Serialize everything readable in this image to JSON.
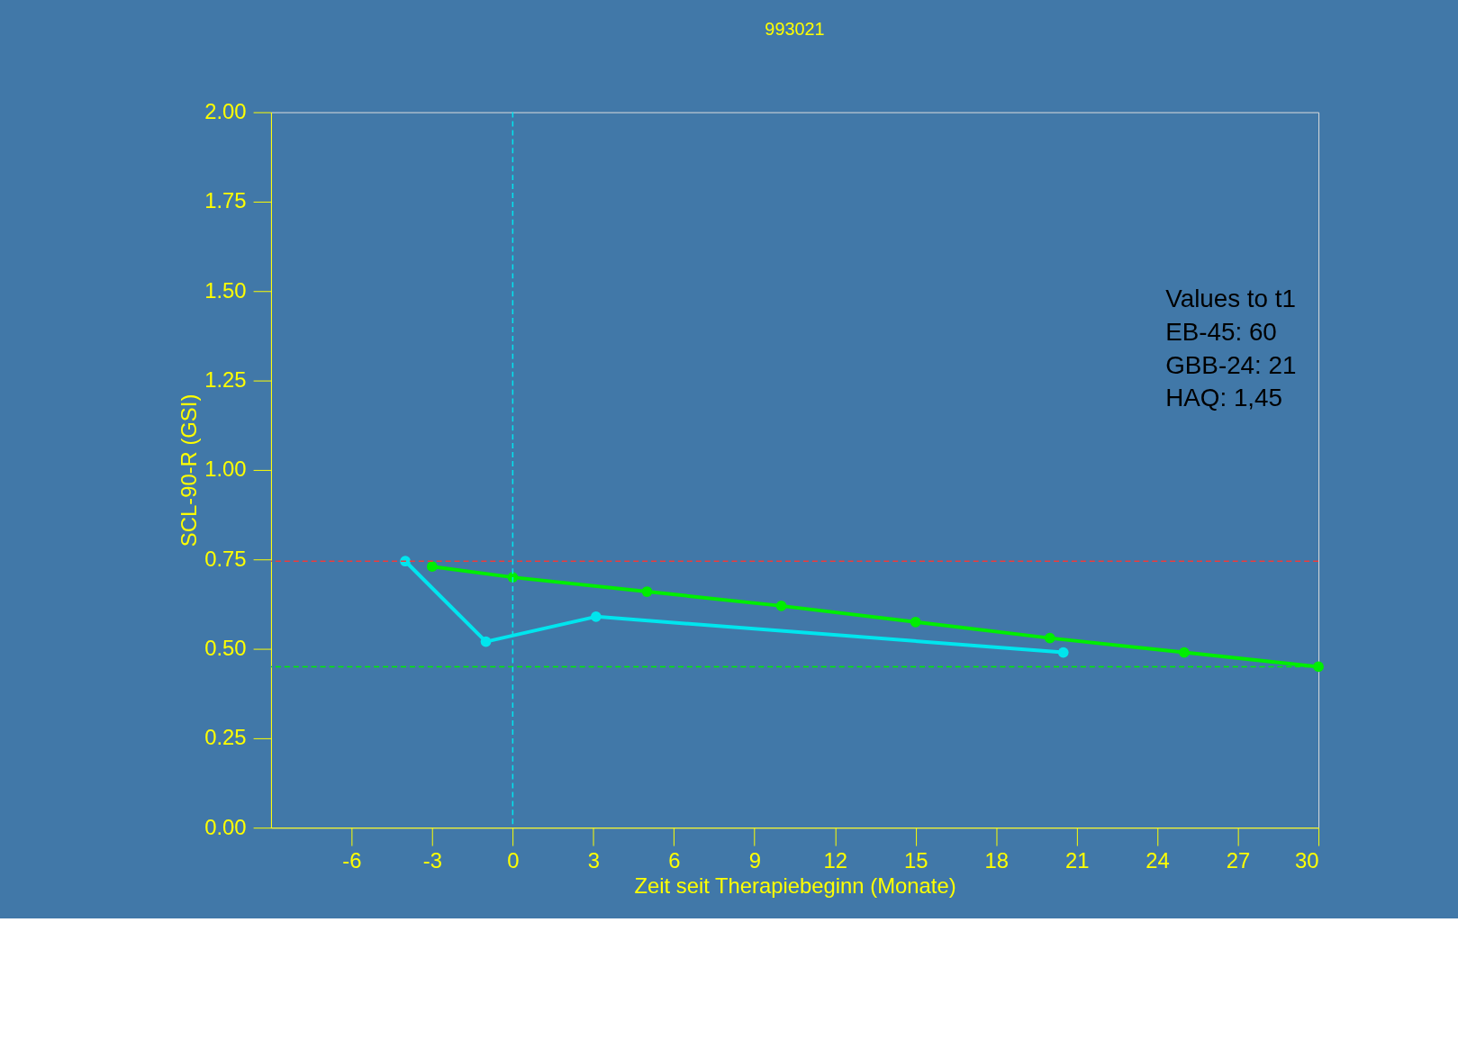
{
  "chart_data": {
    "type": "line",
    "title": "993021",
    "xlabel": "Zeit seit Therapiebeginn (Monate)",
    "ylabel": "SCL-90-R (GSI)",
    "xlim": [
      -9,
      30
    ],
    "xticks": [
      -6,
      -3,
      0,
      3,
      6,
      9,
      12,
      15,
      18,
      21,
      24,
      27,
      30
    ],
    "ylim": [
      0,
      2
    ],
    "yticks": [
      {
        "value": 0,
        "label": "0.00"
      },
      {
        "value": 0.25,
        "label": "0.25"
      },
      {
        "value": 0.5,
        "label": "0.50"
      },
      {
        "value": 0.75,
        "label": "0.75"
      },
      {
        "value": 1,
        "label": "1.00"
      },
      {
        "value": 1.25,
        "label": "1.25"
      },
      {
        "value": 1.5,
        "label": "1.50"
      },
      {
        "value": 1.75,
        "label": "1.75"
      },
      {
        "value": 2,
        "label": "2.00"
      }
    ],
    "grid": false,
    "marker": "circle",
    "line_style": "solid",
    "series": [
      {
        "color": "#00ee00",
        "x": [
          -3,
          0,
          5,
          10,
          15,
          20,
          25,
          30
        ],
        "values": [
          0.73,
          0.7,
          0.66,
          0.62,
          0.575,
          0.53,
          0.49,
          0.45
        ]
      },
      {
        "color": "#00e5ee",
        "x": [
          -4,
          -1,
          3.1,
          20.5
        ],
        "values": [
          0.745,
          0.52,
          0.59,
          0.49
        ]
      }
    ],
    "ref_lines": [
      {
        "axis": "y",
        "value": 0.745,
        "color": "#ee3b3b",
        "line_style": "dashed"
      },
      {
        "axis": "y",
        "value": 0.45,
        "color": "#00ee00",
        "line_style": "dashed"
      },
      {
        "axis": "x",
        "value": 0,
        "color": "#00e5ee",
        "line_style": "dashed"
      }
    ],
    "annotations": [
      "Values to t1",
      "EB-45: 60",
      "GBB-24: 21",
      "HAQ: 1,45"
    ]
  }
}
